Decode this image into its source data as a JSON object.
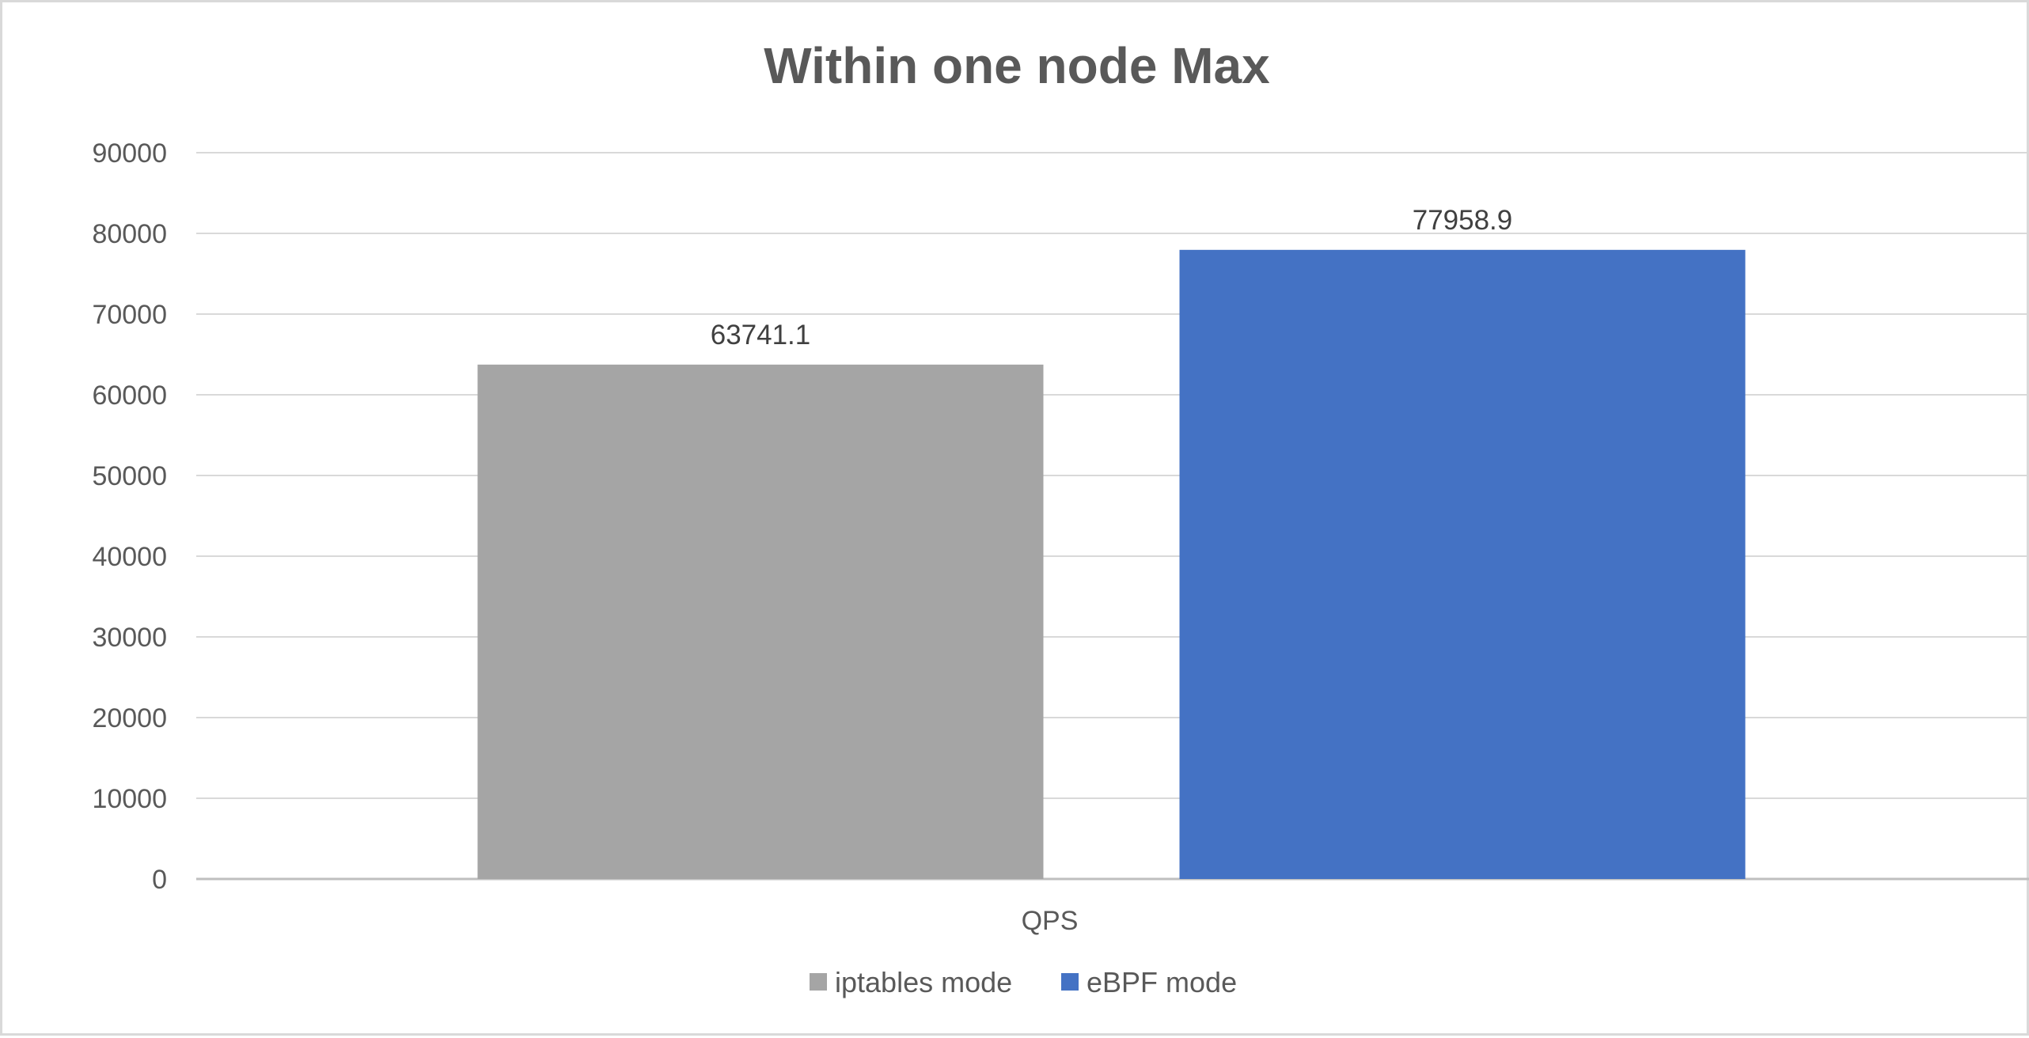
{
  "chart_data": {
    "type": "bar",
    "title": "Within one node Max",
    "categories": [
      "QPS"
    ],
    "series": [
      {
        "name": "iptables mode",
        "values": [
          63741.1
        ],
        "color": "#a5a5a5",
        "label": "63741.1"
      },
      {
        "name": "eBPF mode",
        "values": [
          77958.9
        ],
        "color": "#4472c4",
        "label": "77958.9"
      }
    ],
    "ylim": [
      0,
      90000
    ],
    "yticks": [
      "0",
      "10000",
      "20000",
      "30000",
      "40000",
      "50000",
      "60000",
      "70000",
      "80000",
      "90000"
    ],
    "grid": true,
    "legend_position": "bottom"
  }
}
